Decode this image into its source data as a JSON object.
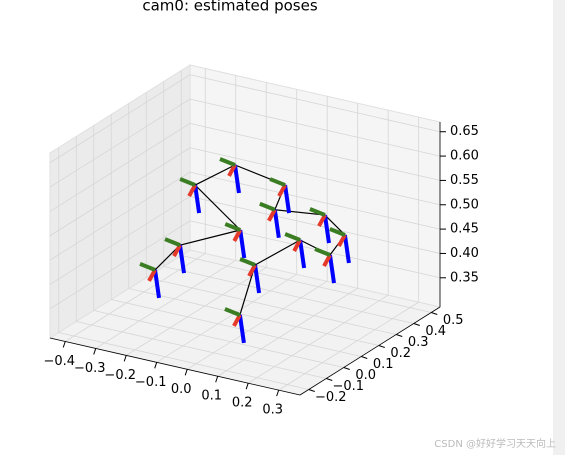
{
  "chart_data": {
    "type": "pose3d",
    "title": "cam0: estimated poses",
    "x": [
      -0.21,
      -0.174,
      -0.016,
      -0.226,
      -0.136,
      0.026,
      0.04,
      0.166,
      0.255,
      0.225,
      0.131,
      0.012,
      0.096
    ],
    "y": [
      -0.068,
      0.012,
      0.081,
      0.189,
      0.26,
      0.264,
      0.181,
      0.248,
      0.207,
      0.174,
      0.167,
      0.117,
      -0.116
    ],
    "z": [
      0.423,
      0.461,
      0.499,
      0.537,
      0.575,
      0.556,
      0.526,
      0.518,
      0.499,
      0.461,
      0.48,
      0.423,
      0.385
    ],
    "xlim": [
      -0.45,
      0.37
    ],
    "ylim": [
      -0.25,
      0.55
    ],
    "zlim": [
      0.29,
      0.67
    ],
    "xticks": [
      {
        "value": -0.4,
        "label": "−0.4"
      },
      {
        "value": -0.3,
        "label": "−0.3"
      },
      {
        "value": -0.2,
        "label": "−0.2"
      },
      {
        "value": -0.1,
        "label": "−0.1"
      },
      {
        "value": 0,
        "label": "0.0"
      },
      0.1,
      0.2,
      0.3
    ],
    "yticks": [
      {
        "value": -0.2,
        "label": "−0.2"
      },
      {
        "value": -0.1,
        "label": "−0.1"
      },
      {
        "value": 0,
        "label": "0.0"
      },
      0.1,
      0.2,
      0.3,
      0.4,
      0.5
    ],
    "zticks": [
      0.35,
      {
        "value": 0.4,
        "label": "0.40"
      },
      0.45,
      {
        "value": 0.5,
        "label": "0.50"
      },
      0.55,
      {
        "value": 0.6,
        "label": "0.60"
      },
      0.65
    ],
    "grid": true,
    "line_color": "#000000"
  },
  "watermark": "CSDN @好好学习天天向上"
}
